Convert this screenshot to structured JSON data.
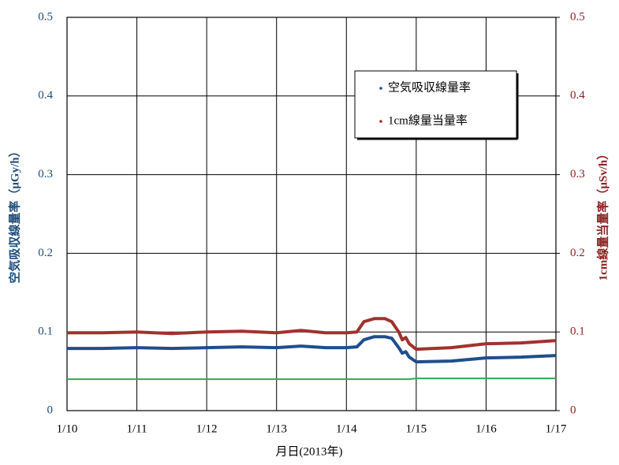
{
  "chart_data": {
    "type": "line",
    "x_label": "月日(2013年)",
    "y_label": "空気吸収線量率（μGy/h）",
    "y2_label": "1cm線量当量率（μSv/h）",
    "x": [
      10,
      10.5,
      11,
      11.5,
      12,
      12.5,
      13,
      13.35,
      13.7,
      14,
      14.15,
      14.25,
      14.4,
      14.55,
      14.65,
      14.75,
      14.8,
      14.85,
      14.9,
      15,
      15.5,
      16,
      16.5,
      17
    ],
    "xlim": [
      10,
      17
    ],
    "xticks": [
      {
        "value": 10,
        "label": "1/10"
      },
      {
        "value": 11,
        "label": "1/11"
      },
      {
        "value": 12,
        "label": "1/12"
      },
      {
        "value": 13,
        "label": "1/13"
      },
      {
        "value": 14,
        "label": "1/14"
      },
      {
        "value": 15,
        "label": "1/15"
      },
      {
        "value": 16,
        "label": "1/16"
      },
      {
        "value": 17,
        "label": "1/17"
      }
    ],
    "ylim": [
      0,
      0.5
    ],
    "yticks": [
      0,
      0.1,
      0.2,
      0.3,
      0.4,
      0.5
    ],
    "y2lim": [
      0,
      0.5
    ],
    "y2ticks": [
      0,
      0.1,
      0.2,
      0.3,
      0.4,
      0.5
    ],
    "grid": true,
    "legend": "upper right",
    "series": [
      {
        "name": "空気吸収線量率",
        "color": "#1f4e8c",
        "axis": "y",
        "values": [
          0.079,
          0.079,
          0.08,
          0.079,
          0.08,
          0.081,
          0.08,
          0.082,
          0.08,
          0.08,
          0.081,
          0.09,
          0.094,
          0.094,
          0.092,
          0.08,
          0.073,
          0.075,
          0.068,
          0.062,
          0.063,
          0.067,
          0.068,
          0.07
        ]
      },
      {
        "name": "1cm線量当量率",
        "color": "#a0322e",
        "axis": "y2",
        "values": [
          0.099,
          0.099,
          0.1,
          0.098,
          0.1,
          0.101,
          0.099,
          0.102,
          0.099,
          0.099,
          0.1,
          0.113,
          0.117,
          0.117,
          0.113,
          0.1,
          0.09,
          0.093,
          0.085,
          0.078,
          0.08,
          0.085,
          0.086,
          0.089
        ]
      },
      {
        "color": "#2eaa57",
        "axis": "y",
        "values": [
          0.04,
          0.04,
          0.04,
          0.04,
          0.04,
          0.04,
          0.04,
          0.04,
          0.04,
          0.04,
          0.04,
          0.04,
          0.04,
          0.04,
          0.04,
          0.04,
          0.04,
          0.04,
          0.04,
          0.041,
          0.041,
          0.041,
          0.041,
          0.041
        ]
      }
    ]
  }
}
